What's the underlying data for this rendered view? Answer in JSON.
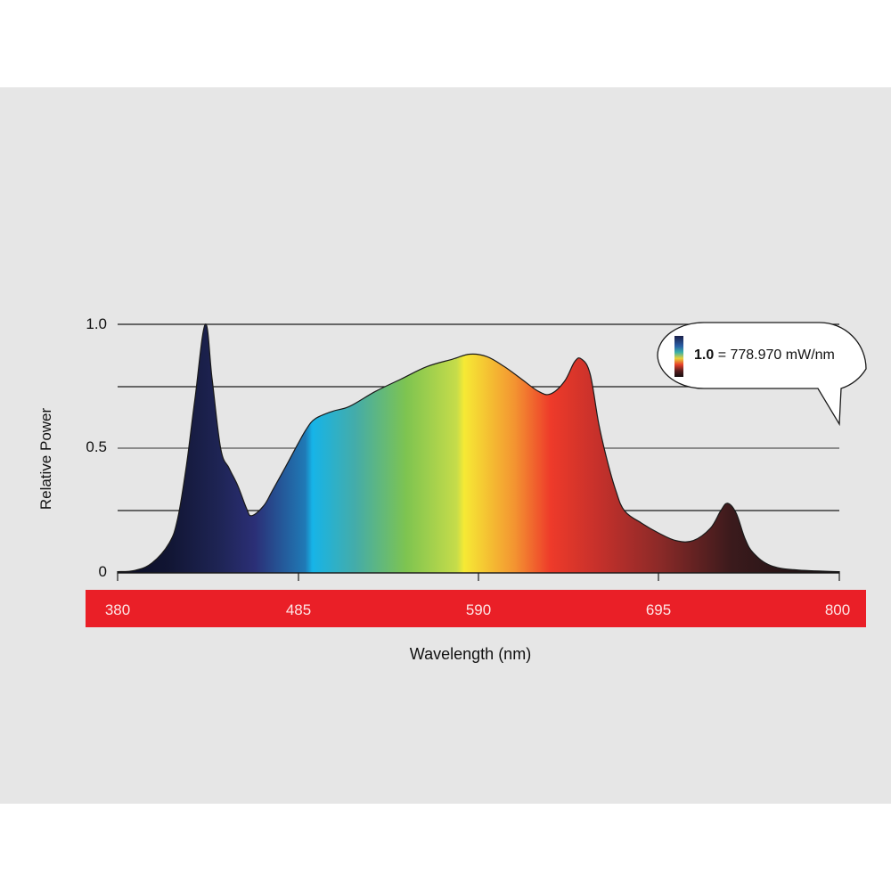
{
  "chart_data": {
    "type": "area",
    "title": "",
    "xlabel": "Wavelength (nm)",
    "ylabel": "Relative Power",
    "xlim": [
      380,
      800
    ],
    "ylim": [
      0,
      1.0
    ],
    "x_ticks": [
      "380",
      "485",
      "590",
      "695",
      "800"
    ],
    "y_ticks": [
      "0",
      "0.5",
      "1.0"
    ],
    "gridlines_y": [
      0.25,
      0.5,
      0.75,
      1.0
    ],
    "grid": true,
    "annotation": {
      "bold": "1.0",
      "text": "= 778.970 mW/nm"
    },
    "series": [
      {
        "name": "Relative Power",
        "x": [
          380,
          390,
          400,
          410,
          415,
          420,
          425,
          431,
          435,
          440,
          445,
          450,
          455,
          458,
          465,
          470,
          478,
          485,
          490,
          495,
          505,
          515,
          530,
          545,
          560,
          575,
          585,
          595,
          605,
          615,
          625,
          632,
          640,
          646,
          650,
          655,
          660,
          665,
          670,
          675,
          685,
          695,
          705,
          715,
          725,
          731,
          735,
          740,
          745,
          750,
          760,
          775,
          800
        ],
        "values": [
          0.005,
          0.01,
          0.04,
          0.12,
          0.22,
          0.43,
          0.7,
          1.0,
          0.78,
          0.5,
          0.42,
          0.35,
          0.26,
          0.23,
          0.27,
          0.33,
          0.43,
          0.52,
          0.58,
          0.62,
          0.65,
          0.67,
          0.73,
          0.78,
          0.83,
          0.86,
          0.88,
          0.87,
          0.83,
          0.78,
          0.73,
          0.72,
          0.77,
          0.85,
          0.86,
          0.8,
          0.6,
          0.45,
          0.33,
          0.25,
          0.2,
          0.16,
          0.13,
          0.13,
          0.18,
          0.25,
          0.28,
          0.24,
          0.14,
          0.08,
          0.03,
          0.012,
          0.005
        ]
      }
    ]
  },
  "labels": {
    "ylabel": "Relative Power",
    "xlabel": "Wavelength (nm)",
    "y_ticks": [
      "1.0",
      "0.5",
      "0"
    ],
    "x_ticks": [
      "380",
      "485",
      "590",
      "695",
      "800"
    ],
    "legend_bold": "1.0",
    "legend_text": " = 778.970 mW/nm"
  },
  "colors": {
    "panel_bg": "#e6e6e6",
    "axis_bar": "#ea1f27",
    "spectrum_stops": [
      "#0b0d24",
      "#1e2454",
      "#2b2f76",
      "#16b4e8",
      "#7ec450",
      "#f6ea34",
      "#ee3a2a",
      "#a92b2a",
      "#3b1a1c",
      "#151012"
    ]
  }
}
